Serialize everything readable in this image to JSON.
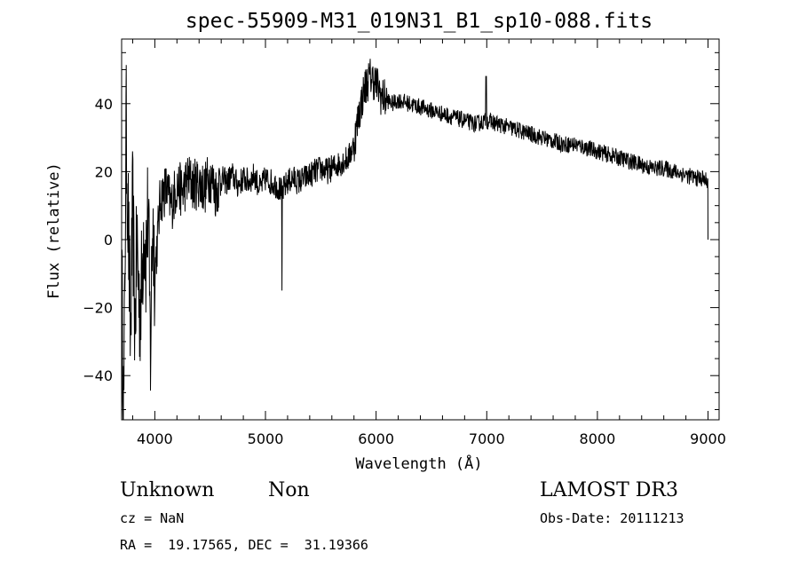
{
  "chart_data": {
    "type": "line",
    "title": "spec-55909-M31_019N31_B1_sp10-088.fits",
    "xlabel": "Wavelength (Å)",
    "ylabel": "Flux (relative)",
    "xlim": [
      3700,
      9100
    ],
    "ylim": [
      -53,
      59
    ],
    "xticks": [
      4000,
      5000,
      6000,
      7000,
      8000,
      9000
    ],
    "yticks": [
      -40,
      -20,
      0,
      20,
      40
    ],
    "ytick_labels": [
      "−40",
      "−20",
      "0",
      "20",
      "40"
    ],
    "grid": false,
    "series": [
      {
        "x": [
          3700,
          3720,
          3740,
          3760,
          3780,
          3800,
          3820,
          3840,
          3860,
          3880,
          3900,
          3920,
          3940,
          3960,
          3980,
          4000,
          4050,
          4100,
          4150,
          4200,
          4250,
          4300,
          4350,
          4400,
          4450,
          4500,
          4550,
          4600,
          4650,
          4700,
          4750,
          4800,
          4850,
          4900,
          4950,
          5000,
          5050,
          5100,
          5150,
          5200,
          5250,
          5300,
          5350,
          5400,
          5450,
          5500,
          5550,
          5600,
          5650,
          5700,
          5750,
          5800,
          5850,
          5900,
          5950,
          6000,
          6050,
          6100,
          6150,
          6200,
          6300,
          6400,
          6500,
          6600,
          6700,
          6800,
          6900,
          7000,
          7100,
          7200,
          7300,
          7400,
          7500,
          7600,
          7700,
          7800,
          7900,
          8000,
          8100,
          8200,
          8300,
          8400,
          8500,
          8600,
          8700,
          8800,
          8900,
          8950,
          9000
        ],
        "y": [
          -10,
          -52,
          35,
          5,
          -30,
          10,
          -25,
          0,
          -20,
          -15,
          5,
          -5,
          10,
          -35,
          8,
          -10,
          12,
          15,
          10,
          16,
          14,
          18,
          16,
          17,
          15,
          19,
          14,
          18,
          17,
          19,
          16,
          18,
          17,
          19,
          15,
          18,
          17,
          16,
          14,
          17,
          18,
          17,
          18,
          19,
          20,
          21,
          20,
          21,
          22,
          23,
          24,
          28,
          38,
          45,
          48,
          46,
          42,
          41,
          40,
          41,
          40,
          39,
          38,
          37,
          36,
          35,
          34,
          35,
          34,
          33,
          32,
          31,
          30,
          29,
          28,
          28,
          27,
          26,
          25,
          24,
          23,
          22,
          21,
          21,
          20,
          19,
          18,
          18,
          17
        ]
      }
    ]
  },
  "info": {
    "class_text": "Unknown",
    "subclass_text": "Non",
    "survey": "LAMOST DR3",
    "cz": "cz = NaN",
    "obs_date": "Obs-Date: 20111213",
    "radec": "RA =  19.17565, DEC =  31.19366"
  }
}
